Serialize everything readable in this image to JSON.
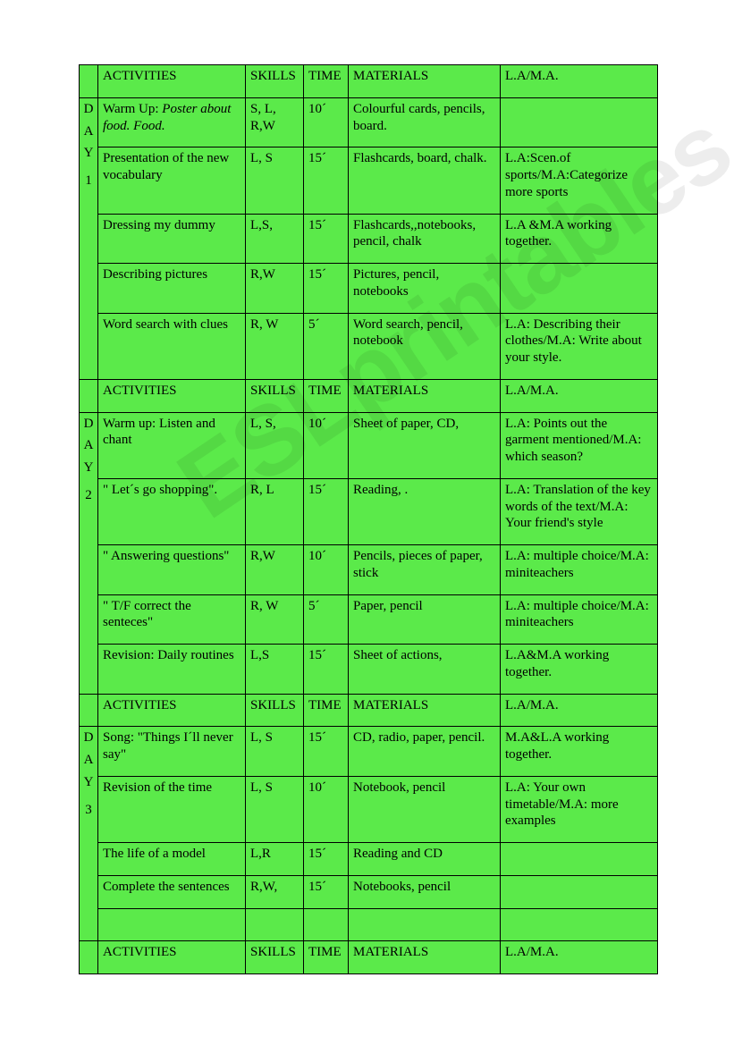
{
  "table": {
    "background_color": "#5bea4a",
    "border_color": "#000000",
    "font_family": "Times New Roman",
    "font_size_pt": 11,
    "columns": [
      "DAY",
      "ACTIVITIES",
      "SKILLS",
      "TIME",
      "MATERIALS",
      "L.A/M.A."
    ],
    "sections": [
      {
        "header": {
          "activities": "ACTIVITIES",
          "skills": "SKILLS",
          "time": "TIME",
          "materials": "MATERIALS",
          "lama": "L.A/M.A."
        },
        "day_letters": [
          "D",
          "A",
          "Y",
          "",
          "1"
        ],
        "rows": [
          {
            "activity_prefix": "Warm Up: ",
            "activity_italic": "Poster about food. Food.",
            "skills": "S, L, R,W",
            "time": "10´",
            "materials": "Colourful cards, pencils, board.",
            "lama": ""
          },
          {
            "activity": "Presentation of the new vocabulary",
            "skills": "L, S",
            "time": "15´",
            "materials": "Flashcards, board, chalk.",
            "lama": "L.A:Scen.of sports/M.A:Categorize more sports"
          },
          {
            "activity": "Dressing my dummy",
            "skills": "L,S,",
            "time": "15´",
            "materials": "Flashcards,,notebooks, pencil, chalk",
            "lama": "L.A &M.A working together."
          },
          {
            "activity": "Describing pictures",
            "skills": "R,W",
            "time": "15´",
            "materials": "Pictures, pencil, notebooks",
            "lama": ""
          },
          {
            "activity": "Word search with clues",
            "skills": "R, W",
            "time": "5´",
            "materials": "Word search, pencil, notebook",
            "lama": "L.A: Describing their clothes/M.A: Write about your style."
          }
        ]
      },
      {
        "header": {
          "activities": "ACTIVITIES",
          "skills": "SKILLS",
          "time": "TIME",
          "materials": "MATERIALS",
          "lama": "L.A/M.A."
        },
        "day_letters": [
          "D",
          "A",
          "Y",
          "",
          "2"
        ],
        "rows": [
          {
            "activity": "Warm up: Listen and chant",
            "skills": "L, S,",
            "time": "10´",
            "materials": "Sheet of paper, CD,",
            "lama": "L.A: Points out the garment mentioned/M.A: which season?"
          },
          {
            "activity": "\" Let´s go shopping\".",
            "skills": "R, L",
            "time": "15´",
            "materials": "Reading, .",
            "lama": "L.A: Translation of the key words of the text/M.A: Your friend's style"
          },
          {
            "activity": "\" Answering questions\"",
            "skills": "R,W",
            "time": "10´",
            "materials": "Pencils, pieces of paper, stick",
            "lama": "L.A: multiple choice/M.A: miniteachers"
          },
          {
            "activity": "\" T/F correct the senteces\"",
            "skills": "R, W",
            "time": "5´",
            "materials": "Paper, pencil",
            "lama": "L.A: multiple choice/M.A: miniteachers"
          },
          {
            "activity": "Revision: Daily routines",
            "skills": "L,S",
            "time": "15´",
            "materials": "Sheet of actions,",
            "lama": "L.A&M.A working together."
          }
        ]
      },
      {
        "header": {
          "activities": "ACTIVITIES",
          "skills": "SKILLS",
          "time": "TIME",
          "materials": "MATERIALS",
          "lama": "L.A/M.A."
        },
        "day_letters": [
          "D",
          "A",
          "Y",
          "",
          "3"
        ],
        "rows": [
          {
            "activity": "Song: \"Things I´ll never say\"",
            "skills": "L, S",
            "time": "15´",
            "materials": "CD, radio, paper, pencil.",
            "lama": "M.A&L.A working together."
          },
          {
            "activity": "Revision of the time",
            "skills": "L, S",
            "time": "10´",
            "materials": "Notebook, pencil",
            "lama": "L.A: Your own timetable/M.A: more examples"
          },
          {
            "activity": "The life of a model",
            "skills": "L,R",
            "time": "15´",
            "materials": "Reading and CD",
            "lama": ""
          },
          {
            "activity": "Complete the sentences",
            "skills": "R,W,",
            "time": "15´",
            "materials": "Notebooks, pencil",
            "lama": ""
          }
        ],
        "rows_count": 4,
        "has_blank_row": true
      },
      {
        "header": {
          "activities": "ACTIVITIES",
          "skills": "SKILLS",
          "time": "TIME",
          "materials": "MATERIALS",
          "lama": "L.A/M.A."
        }
      }
    ]
  },
  "watermark": "ESLprintables.com"
}
